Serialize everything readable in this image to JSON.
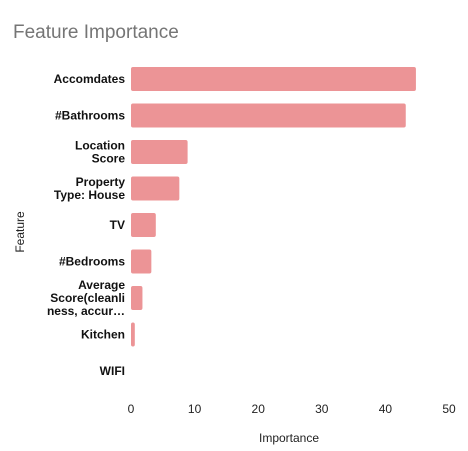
{
  "chart_data": {
    "type": "bar",
    "orientation": "horizontal",
    "title": "Feature Importance",
    "xlabel": "Importance",
    "ylabel": "Feature",
    "categories": [
      [
        "Accomdates"
      ],
      [
        "#Bathrooms"
      ],
      [
        "Location",
        "Score"
      ],
      [
        "Property",
        "Type: House"
      ],
      [
        "TV"
      ],
      [
        "#Bedrooms"
      ],
      [
        "Average",
        "Score(cleanli",
        "ness, accur…"
      ],
      [
        "Kitchen"
      ],
      [
        "WIFI"
      ]
    ],
    "values": [
      44.8,
      43.2,
      8.9,
      7.6,
      3.9,
      3.2,
      1.8,
      0.6,
      0
    ],
    "xlim": [
      0,
      50
    ],
    "xticks": [
      0,
      10,
      20,
      30,
      40,
      50
    ],
    "grid": false,
    "legend": "none",
    "bar_color": "#ec9496"
  }
}
